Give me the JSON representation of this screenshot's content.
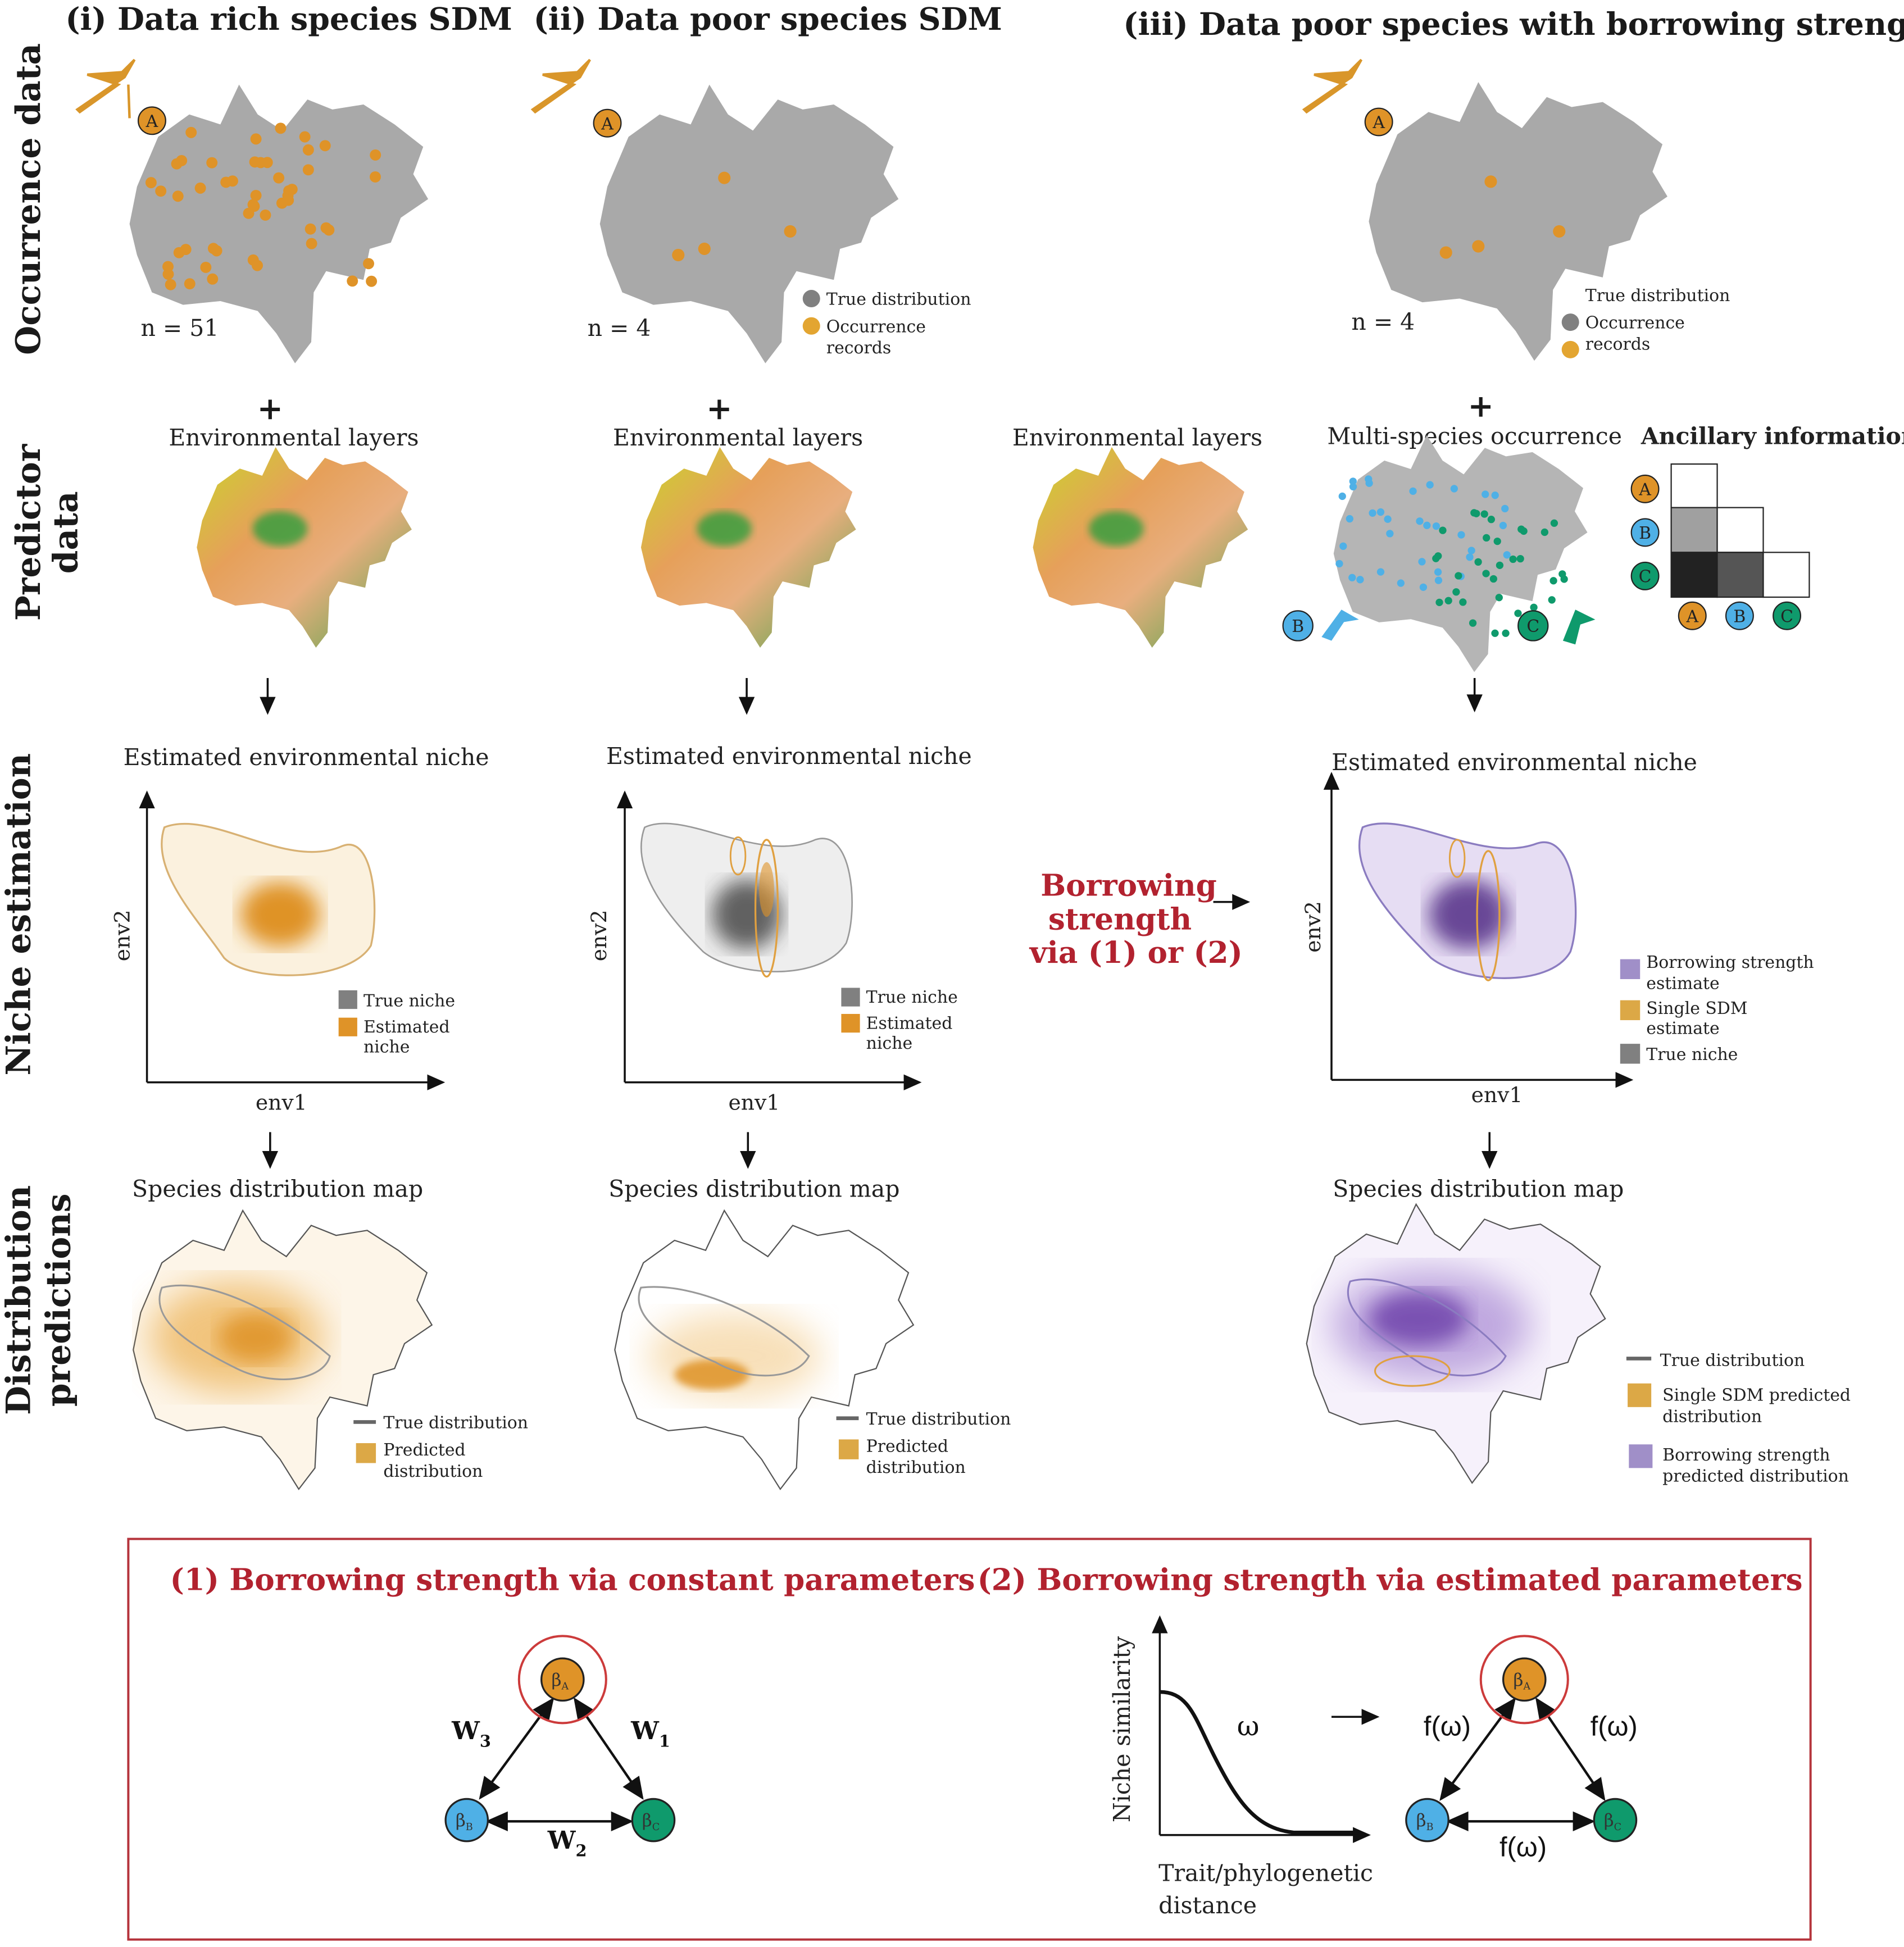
{
  "columns": [
    {
      "title": "(i) Data rich species SDM",
      "n_label": "n = 51"
    },
    {
      "title": "(ii) Data poor species SDM",
      "n_label": "n = 4"
    },
    {
      "title": "(iii) Data poor species with borrowing strength",
      "n_label": "n = 4"
    }
  ],
  "row_labels": {
    "occurrence": "Occurrence data",
    "predictor_1": "Predictor",
    "predictor_2": "data",
    "niche": "Niche estimation",
    "distribution_1": "Distribution",
    "distribution_2": "predictions"
  },
  "species_badges": {
    "a": "A",
    "b": "B",
    "c": "C"
  },
  "occurrence_legend": {
    "true_distribution": "True distribution",
    "occurrence_1": "Occurrence",
    "occurrence_2": "records"
  },
  "predictor": {
    "plus": "+",
    "env_layers": "Environmental layers",
    "multi_species": "Multi-species occurrence",
    "ancillary": "Ancillary information"
  },
  "niche": {
    "title": "Estimated environmental niche",
    "xlabel": "env1",
    "ylabel": "env2",
    "legend_true": "True niche",
    "legend_est_1": "Estimated",
    "legend_est_2": "niche",
    "legend_bs_1": "Borrowing strength",
    "legend_bs_2": "estimate",
    "legend_single_1": "Single SDM",
    "legend_single_2": "estimate",
    "borrow_1": "Borrowing",
    "borrow_2": "strength",
    "borrow_3": "via (1) or (2)"
  },
  "distribution": {
    "title": "Species distribution map",
    "legend_true": "True distribution",
    "legend_pred_1": "Predicted",
    "legend_pred_2": "distribution",
    "legend_single_1": "Single SDM predicted",
    "legend_single_2": "distribution",
    "legend_bs_1": "Borrowing strength",
    "legend_bs_2": "predicted distribution"
  },
  "bottom": {
    "panel1_title": "(1) Borrowing strength via constant parameters",
    "panel2_title": "(2) Borrowing strength via estimated parameters",
    "beta": "β",
    "w1": "W",
    "w1_sub": "1",
    "w2": "W",
    "w2_sub": "2",
    "w3": "W",
    "w3_sub": "3",
    "omega": "ω",
    "f_omega": "f(ω)",
    "ylabel": "Niche similarity",
    "xlabel_1": "Trait/phylogenetic",
    "xlabel_2": "distance"
  },
  "colors": {
    "species_a": "#df9328",
    "species_b": "#4fb0e6",
    "species_c": "#0f9a6c",
    "borrowing": "#7b52b0",
    "true": "#808080",
    "accent_red": "#b2222f"
  }
}
